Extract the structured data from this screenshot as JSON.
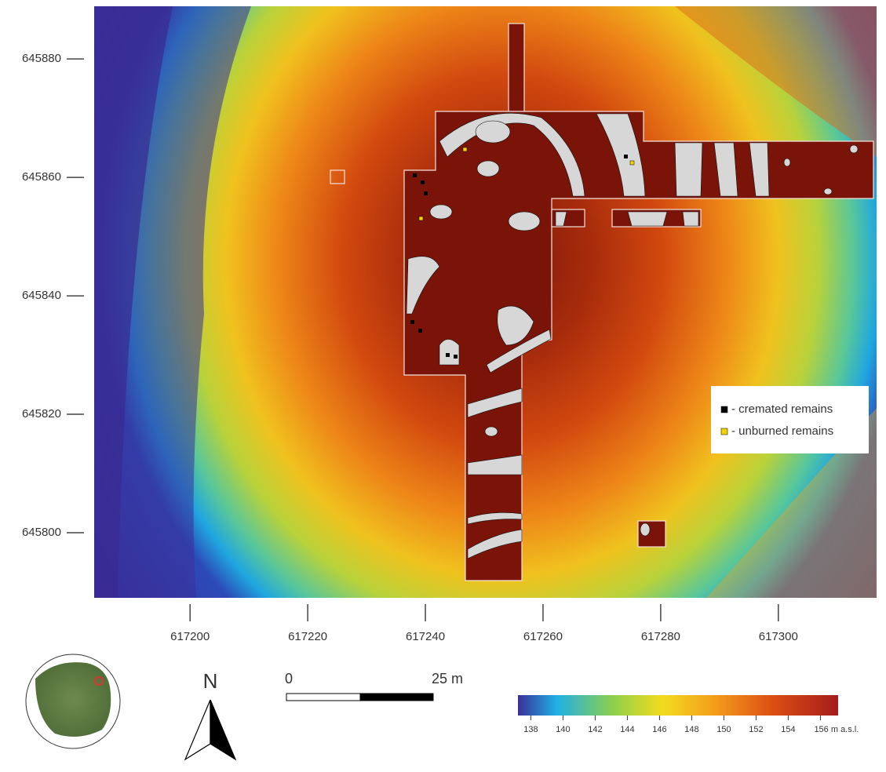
{
  "map": {
    "xlim": [
      617183.7,
      617316.7
    ],
    "ylim": [
      645789,
      645888.9
    ],
    "xticks": [
      617200,
      617220,
      617240,
      617260,
      617280,
      617300
    ],
    "yticks": [
      645800,
      645820,
      645840,
      645860,
      645880
    ],
    "legend": [
      {
        "label": "- cremated remains",
        "color": "#000000"
      },
      {
        "label": "- unburned remains",
        "color": "#f2d300"
      }
    ],
    "north_label": "N",
    "scale_bar": {
      "start_label": "0",
      "end_label": "25 m"
    },
    "colorbar": {
      "lim": [
        137.2,
        157.1
      ],
      "ticks": [
        138,
        140,
        142,
        144,
        146,
        148,
        150,
        152,
        154,
        {
          "value": 156,
          "label": "156 m a.s.l."
        }
      ]
    }
  }
}
